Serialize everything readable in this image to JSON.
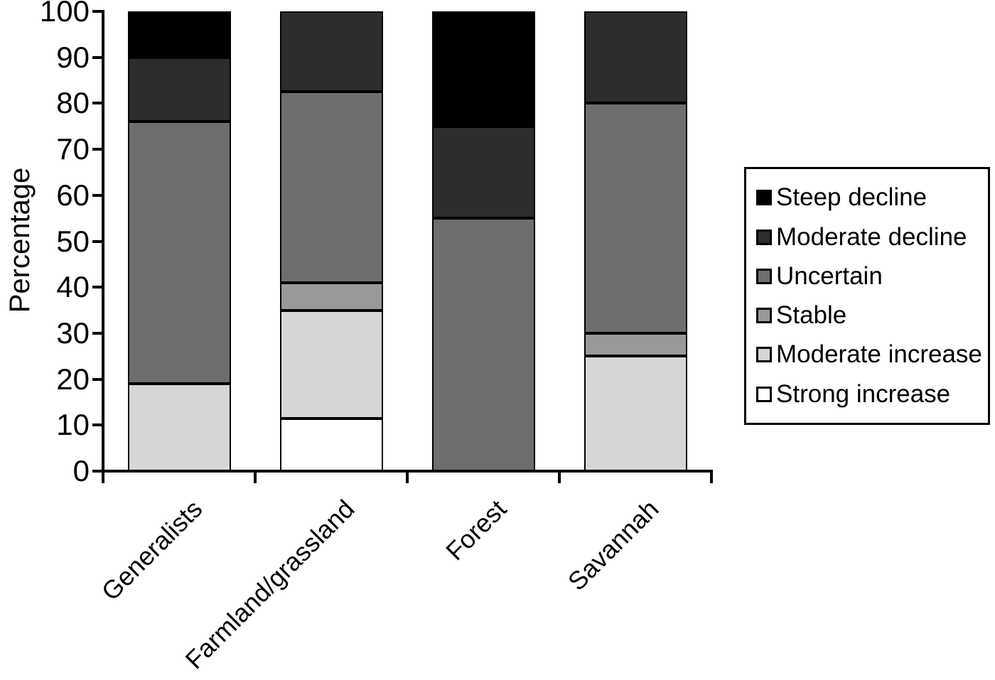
{
  "figure": {
    "background": "#ffffff",
    "axis_color": "#000000"
  },
  "chart_data": {
    "type": "bar",
    "stacked": true,
    "title": "",
    "xlabel": "",
    "ylabel": "Percentage",
    "ylim": [
      0,
      100
    ],
    "yticks": [
      0,
      10,
      20,
      30,
      40,
      50,
      60,
      70,
      80,
      90,
      100
    ],
    "grid": false,
    "legend_position": "right",
    "categories": [
      "Generalists",
      "Farmland/grassland",
      "Forest",
      "Savannah"
    ],
    "series": [
      {
        "name": "Strong increase",
        "color": "#ffffff",
        "values": [
          0,
          11.5,
          0,
          0
        ]
      },
      {
        "name": "Moderate increase",
        "color": "#d6d6d6",
        "values": [
          19,
          23.5,
          0,
          25
        ]
      },
      {
        "name": "Stable",
        "color": "#999999",
        "values": [
          0,
          6,
          0,
          5
        ]
      },
      {
        "name": "Uncertain",
        "color": "#6e6e6e",
        "values": [
          57,
          41.5,
          55,
          50
        ]
      },
      {
        "name": "Moderate decline",
        "color": "#2d2d2d",
        "values": [
          14,
          17.5,
          20,
          20
        ]
      },
      {
        "name": "Steep decline",
        "color": "#000000",
        "values": [
          10,
          0,
          25,
          0
        ]
      }
    ],
    "legend": [
      "Steep decline",
      "Moderate decline",
      "Uncertain",
      "Stable",
      "Moderate increase",
      "Strong increase"
    ]
  }
}
